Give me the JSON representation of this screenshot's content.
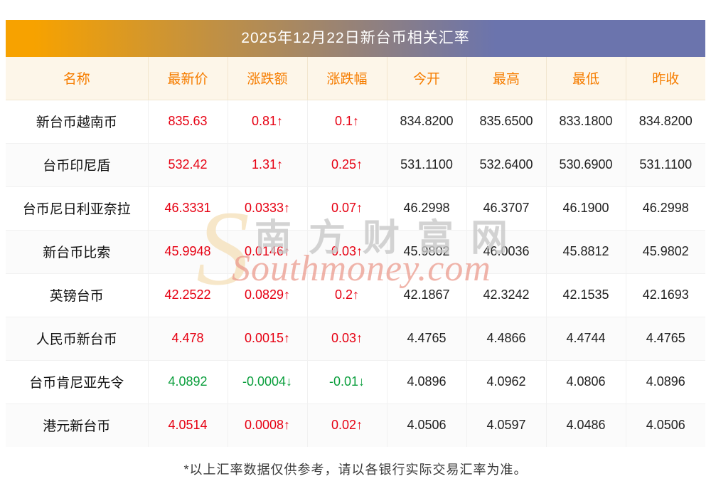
{
  "banner": {
    "title": "2025年12月22日新台币相关汇率"
  },
  "chart_data": {
    "type": "table",
    "title": "2025年12月22日新台币相关汇率",
    "columns": [
      "名称",
      "最新价",
      "涨跌额",
      "涨跌幅",
      "今开",
      "最高",
      "最低",
      "昨收"
    ],
    "rows": [
      {
        "name": "新台币越南币",
        "latest": "835.63",
        "change": "0.81↑",
        "change_pct": "0.1↑",
        "open": "834.8200",
        "high": "835.6500",
        "low": "833.1800",
        "prev_close": "834.8200",
        "direction": "up"
      },
      {
        "name": "台币印尼盾",
        "latest": "532.42",
        "change": "1.31↑",
        "change_pct": "0.25↑",
        "open": "531.1100",
        "high": "532.6400",
        "low": "530.6900",
        "prev_close": "531.1100",
        "direction": "up"
      },
      {
        "name": "台币尼日利亚奈拉",
        "latest": "46.3331",
        "change": "0.0333↑",
        "change_pct": "0.07↑",
        "open": "46.2998",
        "high": "46.3707",
        "low": "46.1900",
        "prev_close": "46.2998",
        "direction": "up"
      },
      {
        "name": "新台币比索",
        "latest": "45.9948",
        "change": "0.0146↑",
        "change_pct": "0.03↑",
        "open": "45.9802",
        "high": "46.0036",
        "low": "45.8812",
        "prev_close": "45.9802",
        "direction": "up"
      },
      {
        "name": "英镑台币",
        "latest": "42.2522",
        "change": "0.0829↑",
        "change_pct": "0.2↑",
        "open": "42.1867",
        "high": "42.3242",
        "low": "42.1535",
        "prev_close": "42.1693",
        "direction": "up"
      },
      {
        "name": "人民币新台币",
        "latest": "4.478",
        "change": "0.0015↑",
        "change_pct": "0.03↑",
        "open": "4.4765",
        "high": "4.4866",
        "low": "4.4744",
        "prev_close": "4.4765",
        "direction": "up"
      },
      {
        "name": "台币肯尼亚先令",
        "latest": "4.0892",
        "change": "-0.0004↓",
        "change_pct": "-0.01↓",
        "open": "4.0896",
        "high": "4.0962",
        "low": "4.0806",
        "prev_close": "4.0896",
        "direction": "down"
      },
      {
        "name": "港元新台币",
        "latest": "4.0514",
        "change": "0.0008↑",
        "change_pct": "0.02↑",
        "open": "4.0506",
        "high": "4.0597",
        "low": "4.0486",
        "prev_close": "4.0506",
        "direction": "up"
      }
    ]
  },
  "watermark": {
    "s_glyph": "S",
    "cn": "南方财富网",
    "en": "Southmoney.com"
  },
  "footer": {
    "note": "*以上汇率数据仅供参考，请以各银行实际交易汇率为准。"
  },
  "colors": {
    "up": "#e60012",
    "down": "#0a9e3c",
    "header_text": "#f67d00",
    "header_bg": "#fdf6e9",
    "banner_left": "#f7a200",
    "banner_right": "#6b74ad"
  }
}
